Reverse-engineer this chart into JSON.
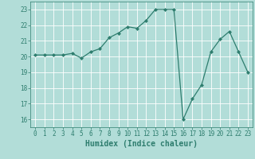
{
  "x": [
    0,
    1,
    2,
    3,
    4,
    5,
    6,
    7,
    8,
    9,
    10,
    11,
    12,
    13,
    14,
    15,
    16,
    17,
    18,
    19,
    20,
    21,
    22,
    23
  ],
  "y": [
    20.1,
    20.1,
    20.1,
    20.1,
    20.2,
    19.9,
    20.3,
    20.5,
    21.2,
    21.5,
    21.9,
    21.8,
    22.3,
    23.0,
    23.0,
    23.0,
    16.0,
    17.3,
    18.2,
    20.3,
    21.1,
    21.6,
    20.3,
    19.0
  ],
  "line_color": "#2e7d6e",
  "marker": "D",
  "marker_size": 2,
  "bg_color": "#b2ddd8",
  "grid_color": "#ffffff",
  "xlabel": "Humidex (Indice chaleur)",
  "ylim": [
    15.5,
    23.5
  ],
  "xlim": [
    -0.5,
    23.5
  ],
  "yticks": [
    16,
    17,
    18,
    19,
    20,
    21,
    22,
    23
  ],
  "xticks": [
    0,
    1,
    2,
    3,
    4,
    5,
    6,
    7,
    8,
    9,
    10,
    11,
    12,
    13,
    14,
    15,
    16,
    17,
    18,
    19,
    20,
    21,
    22,
    23
  ],
  "tick_fontsize": 5.5,
  "xlabel_fontsize": 7,
  "xlabel_color": "#2e7d6e",
  "linewidth": 0.9
}
